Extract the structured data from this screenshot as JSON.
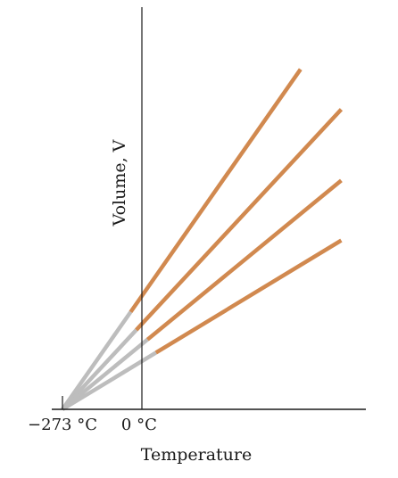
{
  "chart_data": {
    "type": "line",
    "title": "",
    "xlabel": "Temperature",
    "ylabel": "Volume, V",
    "x_tick_labels": [
      {
        "value": -273,
        "label": "−273 °C"
      },
      {
        "value": 0,
        "label": "0 °C"
      }
    ],
    "x_range": [
      -273,
      760
    ],
    "y_range": [
      0,
      1.0
    ],
    "grid": false,
    "legend": "none",
    "extrapolation_color": "#bdbdbd",
    "measured_color": "#d1894f",
    "extrapolation_x_range": [
      -273,
      0
    ],
    "series": [
      {
        "measured_from_x": -30,
        "slope": 0.000997,
        "end_x": 575
      },
      {
        "measured_from_x": -10,
        "slope": 0.000751,
        "end_x": 720
      },
      {
        "measured_from_x": 30,
        "slope": 0.000573,
        "end_x": 720
      },
      {
        "measured_from_x": 60,
        "slope": 0.000423,
        "end_x": 720
      }
    ]
  }
}
